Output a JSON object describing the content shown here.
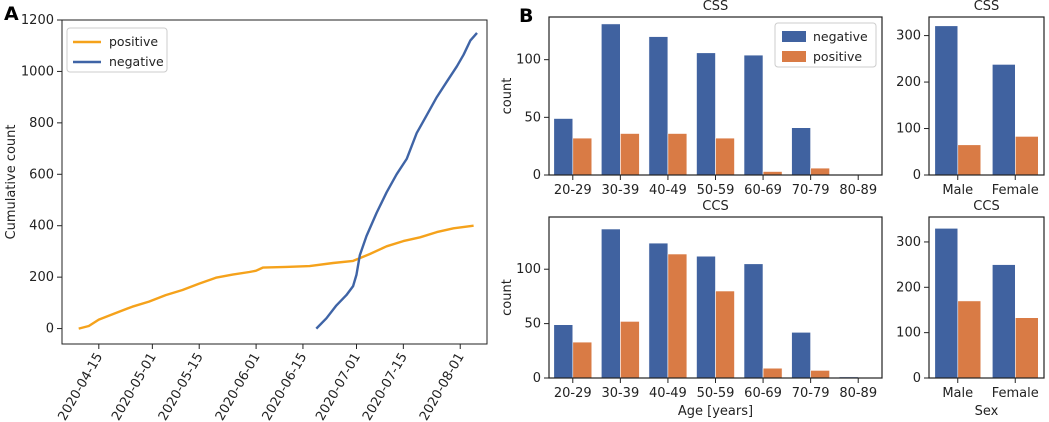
{
  "panel_labels": {
    "a": "A",
    "b": "B"
  },
  "colors": {
    "negative": "#4062a0",
    "positive": "#d97b45",
    "line_positive": "#f5a21b",
    "line_negative": "#3f64a6"
  },
  "chart_data": [
    {
      "id": "cumulative",
      "type": "line",
      "title": "",
      "xlabel": "",
      "ylabel": "Cumulative count",
      "ylim": [
        -60,
        1200
      ],
      "yticks": [
        0,
        200,
        400,
        600,
        800,
        1000,
        1200
      ],
      "xlim": [
        "2020-04-04",
        "2020-08-09"
      ],
      "xtick_labels": [
        "2020-04-15",
        "2020-05-01",
        "2020-05-15",
        "2020-06-01",
        "2020-06-15",
        "2020-07-01",
        "2020-07-15",
        "2020-08-01"
      ],
      "legend": [
        "positive",
        "negative"
      ],
      "legend_position": "top-left",
      "series": [
        {
          "name": "positive",
          "x": [
            "2020-04-09",
            "2020-04-12",
            "2020-04-15",
            "2020-04-20",
            "2020-04-25",
            "2020-04-30",
            "2020-05-05",
            "2020-05-10",
            "2020-05-15",
            "2020-05-20",
            "2020-05-25",
            "2020-05-30",
            "2020-06-01",
            "2020-06-03",
            "2020-06-10",
            "2020-06-17",
            "2020-06-24",
            "2020-06-30",
            "2020-07-05",
            "2020-07-10",
            "2020-07-15",
            "2020-07-20",
            "2020-07-25",
            "2020-07-30",
            "2020-08-05"
          ],
          "y": [
            0,
            10,
            35,
            60,
            85,
            105,
            130,
            150,
            175,
            198,
            210,
            220,
            225,
            237,
            240,
            243,
            255,
            263,
            290,
            320,
            340,
            355,
            375,
            390,
            400
          ]
        },
        {
          "name": "negative",
          "x": [
            "2020-06-19",
            "2020-06-22",
            "2020-06-25",
            "2020-06-28",
            "2020-06-30",
            "2020-07-01",
            "2020-07-02",
            "2020-07-04",
            "2020-07-07",
            "2020-07-10",
            "2020-07-13",
            "2020-07-16",
            "2020-07-19",
            "2020-07-22",
            "2020-07-25",
            "2020-07-28",
            "2020-07-31",
            "2020-08-02",
            "2020-08-04",
            "2020-08-06"
          ],
          "y": [
            0,
            40,
            90,
            130,
            165,
            210,
            285,
            360,
            450,
            530,
            600,
            660,
            760,
            830,
            900,
            960,
            1020,
            1065,
            1120,
            1150
          ]
        }
      ]
    },
    {
      "id": "css_age",
      "type": "bar",
      "title": "CSS",
      "xlabel": "",
      "ylabel": "count",
      "ylim": [
        0,
        137
      ],
      "yticks": [
        0,
        50,
        100
      ],
      "categories": [
        "20-29",
        "30-39",
        "40-49",
        "50-59",
        "60-69",
        "70-79",
        "80-89"
      ],
      "legend": [
        "negative",
        "positive"
      ],
      "legend_position": "top-right",
      "series": [
        {
          "name": "negative",
          "values": [
            49,
            131,
            120,
            106,
            104,
            41,
            0
          ]
        },
        {
          "name": "positive",
          "values": [
            32,
            36,
            36,
            32,
            3,
            6,
            0
          ]
        }
      ]
    },
    {
      "id": "css_sex",
      "type": "bar",
      "title": "CSS",
      "xlabel": "",
      "ylabel": "",
      "ylim": [
        0,
        340
      ],
      "yticks": [
        0,
        100,
        200,
        300
      ],
      "categories": [
        "Male",
        "Female"
      ],
      "series": [
        {
          "name": "negative",
          "values": [
            321,
            238
          ]
        },
        {
          "name": "positive",
          "values": [
            65,
            83
          ]
        }
      ]
    },
    {
      "id": "ccs_age",
      "type": "bar",
      "title": "CCS",
      "xlabel": "Age [years]",
      "ylabel": "count",
      "ylim": [
        0,
        148
      ],
      "yticks": [
        0,
        50,
        100
      ],
      "categories": [
        "20-29",
        "30-39",
        "40-49",
        "50-59",
        "60-69",
        "70-79",
        "80-89"
      ],
      "series": [
        {
          "name": "negative",
          "values": [
            49,
            137,
            124,
            112,
            105,
            42,
            1
          ]
        },
        {
          "name": "positive",
          "values": [
            33,
            52,
            114,
            80,
            9,
            7,
            0
          ]
        }
      ]
    },
    {
      "id": "ccs_sex",
      "type": "bar",
      "title": "CCS",
      "xlabel": "Sex",
      "ylabel": "",
      "ylim": [
        0,
        355
      ],
      "yticks": [
        0,
        100,
        200,
        300
      ],
      "categories": [
        "Male",
        "Female"
      ],
      "series": [
        {
          "name": "negative",
          "values": [
            330,
            250
          ]
        },
        {
          "name": "positive",
          "values": [
            170,
            133
          ]
        }
      ]
    }
  ]
}
